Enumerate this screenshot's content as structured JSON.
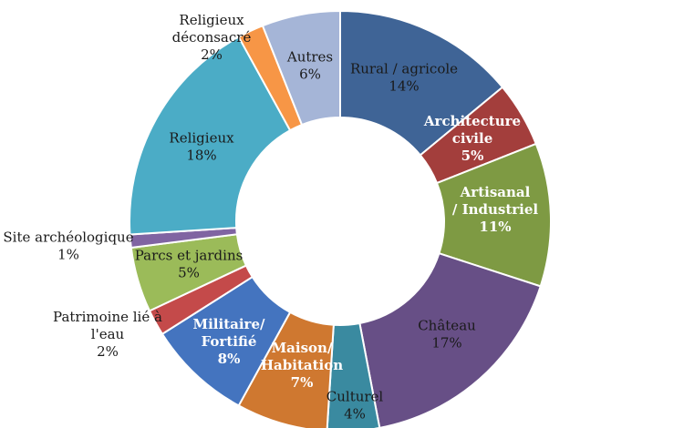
{
  "chart_data": {
    "type": "donut",
    "title": "",
    "start_angle_deg": 0,
    "direction": "clockwise",
    "legend": "none",
    "slices": [
      {
        "label": [
          "Rural / agricole"
        ],
        "pct_label": "14%",
        "value": 14,
        "color": "#3f6496",
        "label_style": "inside"
      },
      {
        "label": [
          "Architecture",
          "civile"
        ],
        "pct_label": "5%",
        "value": 5,
        "color": "#a33e3c",
        "label_style": "inside-bold"
      },
      {
        "label": [
          "Artisanal",
          "/ Industriel"
        ],
        "pct_label": "11%",
        "value": 11,
        "color": "#7e9a43",
        "label_style": "inside-bold"
      },
      {
        "label": [
          "Château"
        ],
        "pct_label": "17%",
        "value": 17,
        "color": "#674f86",
        "label_style": "inside"
      },
      {
        "label": [
          "Culturel"
        ],
        "pct_label": "4%",
        "value": 4,
        "color": "#3a8aa0",
        "label_style": "inside"
      },
      {
        "label": [
          "Maison/",
          "Habitation"
        ],
        "pct_label": "7%",
        "value": 7,
        "color": "#cf7830",
        "label_style": "inside-bold"
      },
      {
        "label": [
          "Militaire/",
          "Fortifié"
        ],
        "pct_label": "8%",
        "value": 8,
        "color": "#4474bf",
        "label_style": "inside-bold"
      },
      {
        "label": [
          "Patrimoine lié à",
          "l'eau"
        ],
        "pct_label": "2%",
        "value": 2,
        "color": "#c44a4a",
        "label_style": "outside"
      },
      {
        "label": [
          "Parcs et jardins"
        ],
        "pct_label": "5%",
        "value": 5,
        "color": "#9bbb59",
        "label_style": "inside"
      },
      {
        "label": [
          "Site archéologique"
        ],
        "pct_label": "1%",
        "value": 1,
        "color": "#8064a2",
        "label_style": "outside"
      },
      {
        "label": [
          "Religieux"
        ],
        "pct_label": "18%",
        "value": 18,
        "color": "#4bacc6",
        "label_style": "inside"
      },
      {
        "label": [
          "Religieux",
          "déconsacré"
        ],
        "pct_label": "2%",
        "value": 2,
        "color": "#f79646",
        "label_style": "outside"
      },
      {
        "label": [
          "Autres"
        ],
        "pct_label": "6%",
        "value": 6,
        "color": "#a5b5d7",
        "label_style": "inside"
      }
    ]
  }
}
